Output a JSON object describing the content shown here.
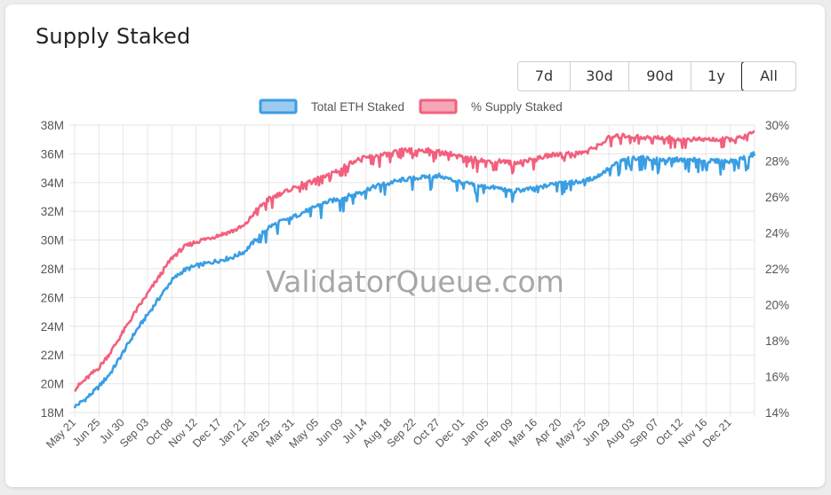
{
  "title": "Supply Staked",
  "range_buttons": [
    "7d",
    "30d",
    "90d",
    "1y",
    "All"
  ],
  "active_range": "All",
  "watermark": "ValidatorQueue.com",
  "colors": {
    "total_eth": "#3a9ee4",
    "total_eth_fill": "#9ccbf0",
    "supply_pct": "#f2607d",
    "supply_pct_fill": "#f7a8b8",
    "grid": "#e6e6e6"
  },
  "chart_data": {
    "type": "line",
    "legend_position": "top",
    "grid": true,
    "x_tick_labels": [
      "May 21",
      "Jun 25",
      "Jul 30",
      "Sep 03",
      "Oct 08",
      "Nov 12",
      "Dec 17",
      "Jan 21",
      "Feb 25",
      "Mar 31",
      "May 05",
      "Jun 09",
      "Jul 14",
      "Aug 18",
      "Sep 22",
      "Oct 27",
      "Dec 01",
      "Jan 05",
      "Feb 09",
      "Mar 16",
      "Apr 20",
      "May 25",
      "Jun 29",
      "Aug 03",
      "Sep 07",
      "Oct 12",
      "Nov 16",
      "Dec 21"
    ],
    "y_left": {
      "ticks": [
        "18M",
        "20M",
        "22M",
        "24M",
        "26M",
        "28M",
        "30M",
        "32M",
        "34M",
        "36M",
        "38M"
      ],
      "range": [
        18,
        38
      ],
      "unit": "M"
    },
    "y_right": {
      "ticks": [
        "14%",
        "16%",
        "18%",
        "20%",
        "22%",
        "24%",
        "26%",
        "28%",
        "30%"
      ],
      "range": [
        14,
        30
      ],
      "unit": "%"
    },
    "series": [
      {
        "name": "Total ETH Staked",
        "axis": "left",
        "points": [
          [
            0,
            18.4
          ],
          [
            0.5,
            19.0
          ],
          [
            1,
            19.8
          ],
          [
            1.5,
            20.8
          ],
          [
            2,
            22.2
          ],
          [
            2.5,
            23.6
          ],
          [
            3,
            24.8
          ],
          [
            3.5,
            26.0
          ],
          [
            4,
            27.2
          ],
          [
            4.5,
            27.9
          ],
          [
            5,
            28.2
          ],
          [
            5.5,
            28.4
          ],
          [
            6,
            28.6
          ],
          [
            6.5,
            28.8
          ],
          [
            7,
            29.2
          ],
          [
            7.5,
            30.1
          ],
          [
            8,
            30.9
          ],
          [
            8.5,
            31.3
          ],
          [
            9,
            31.6
          ],
          [
            9.5,
            32.0
          ],
          [
            10,
            32.4
          ],
          [
            10.5,
            32.7
          ],
          [
            11,
            32.9
          ],
          [
            11.5,
            33.2
          ],
          [
            12,
            33.5
          ],
          [
            12.5,
            33.8
          ],
          [
            13,
            34.0
          ],
          [
            13.5,
            34.2
          ],
          [
            14,
            34.3
          ],
          [
            14.5,
            34.4
          ],
          [
            15,
            34.5
          ],
          [
            15.5,
            34.2
          ],
          [
            16,
            34.0
          ],
          [
            16.5,
            33.8
          ],
          [
            17,
            33.7
          ],
          [
            17.5,
            33.6
          ],
          [
            18,
            33.4
          ],
          [
            18.5,
            33.5
          ],
          [
            19,
            33.6
          ],
          [
            19.5,
            33.8
          ],
          [
            20,
            34.1
          ],
          [
            20.5,
            34.0
          ],
          [
            21,
            34.1
          ],
          [
            21.5,
            34.4
          ],
          [
            22,
            35.0
          ],
          [
            22.5,
            35.5
          ],
          [
            23,
            35.7
          ],
          [
            23.5,
            35.7
          ],
          [
            24,
            35.6
          ],
          [
            24.5,
            35.6
          ],
          [
            25,
            35.6
          ],
          [
            25.5,
            35.6
          ],
          [
            26,
            35.5
          ],
          [
            26.5,
            35.5
          ],
          [
            27,
            35.5
          ],
          [
            27.5,
            35.7
          ],
          [
            28,
            36.0
          ]
        ]
      },
      {
        "name": "% Supply Staked",
        "axis": "right",
        "points": [
          [
            0,
            15.3
          ],
          [
            0.5,
            15.9
          ],
          [
            1,
            16.5
          ],
          [
            1.5,
            17.4
          ],
          [
            2,
            18.5
          ],
          [
            2.5,
            19.6
          ],
          [
            3,
            20.6
          ],
          [
            3.5,
            21.6
          ],
          [
            4,
            22.6
          ],
          [
            4.5,
            23.2
          ],
          [
            5,
            23.5
          ],
          [
            5.5,
            23.7
          ],
          [
            6,
            23.9
          ],
          [
            6.5,
            24.1
          ],
          [
            7,
            24.4
          ],
          [
            7.5,
            25.3
          ],
          [
            8,
            25.9
          ],
          [
            8.5,
            26.2
          ],
          [
            9,
            26.5
          ],
          [
            9.5,
            26.8
          ],
          [
            10,
            27.0
          ],
          [
            10.5,
            27.3
          ],
          [
            11,
            27.6
          ],
          [
            11.5,
            28.0
          ],
          [
            12,
            28.2
          ],
          [
            12.5,
            28.3
          ],
          [
            13,
            28.4
          ],
          [
            13.5,
            28.6
          ],
          [
            14,
            28.6
          ],
          [
            14.5,
            28.6
          ],
          [
            15,
            28.5
          ],
          [
            15.5,
            28.4
          ],
          [
            16,
            28.2
          ],
          [
            16.5,
            28.1
          ],
          [
            17,
            28.0
          ],
          [
            17.5,
            28.0
          ],
          [
            18,
            27.9
          ],
          [
            18.5,
            28.0
          ],
          [
            19,
            28.1
          ],
          [
            19.5,
            28.3
          ],
          [
            20,
            28.4
          ],
          [
            20.5,
            28.4
          ],
          [
            21,
            28.5
          ],
          [
            21.5,
            28.8
          ],
          [
            22,
            29.3
          ],
          [
            22.5,
            29.4
          ],
          [
            23,
            29.4
          ],
          [
            23.5,
            29.3
          ],
          [
            24,
            29.3
          ],
          [
            24.5,
            29.3
          ],
          [
            25,
            29.2
          ],
          [
            25.5,
            29.2
          ],
          [
            26,
            29.2
          ],
          [
            26.5,
            29.2
          ],
          [
            27,
            29.2
          ],
          [
            27.5,
            29.3
          ],
          [
            28,
            29.6
          ]
        ]
      }
    ]
  }
}
